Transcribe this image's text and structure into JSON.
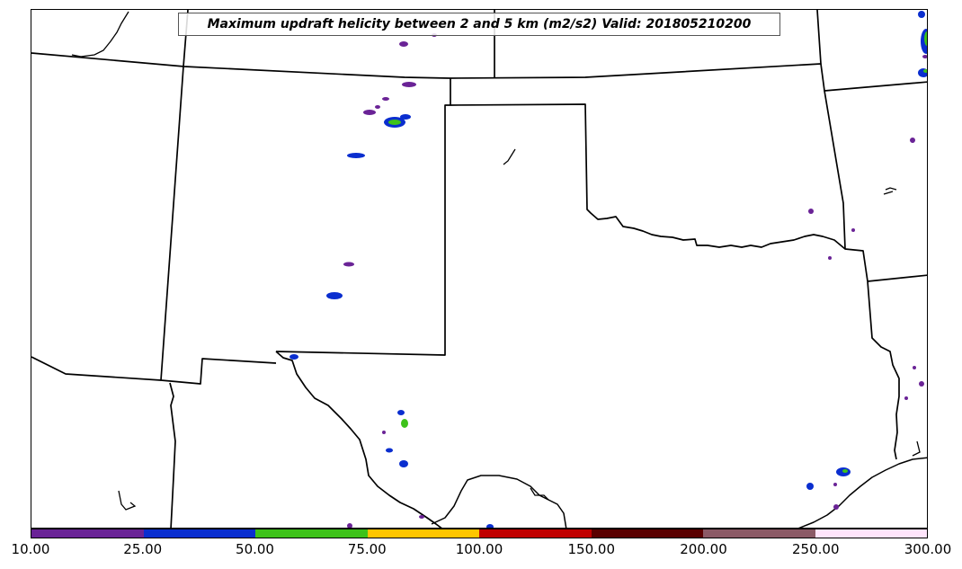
{
  "title": "Maximum updraft helicity between 2 and 5 km (m2/s2) Valid: 201805210200",
  "colorbar": {
    "colors": [
      "#6a2396",
      "#0a2ecf",
      "#3ec21a",
      "#ffc600",
      "#c00000",
      "#5a0000",
      "#8b5a66",
      "#ffe4fb"
    ],
    "labels": [
      "10.00",
      "25.00",
      "50.00",
      "75.00",
      "100.00",
      "150.00",
      "200.00",
      "250.00",
      "300.00"
    ]
  }
}
